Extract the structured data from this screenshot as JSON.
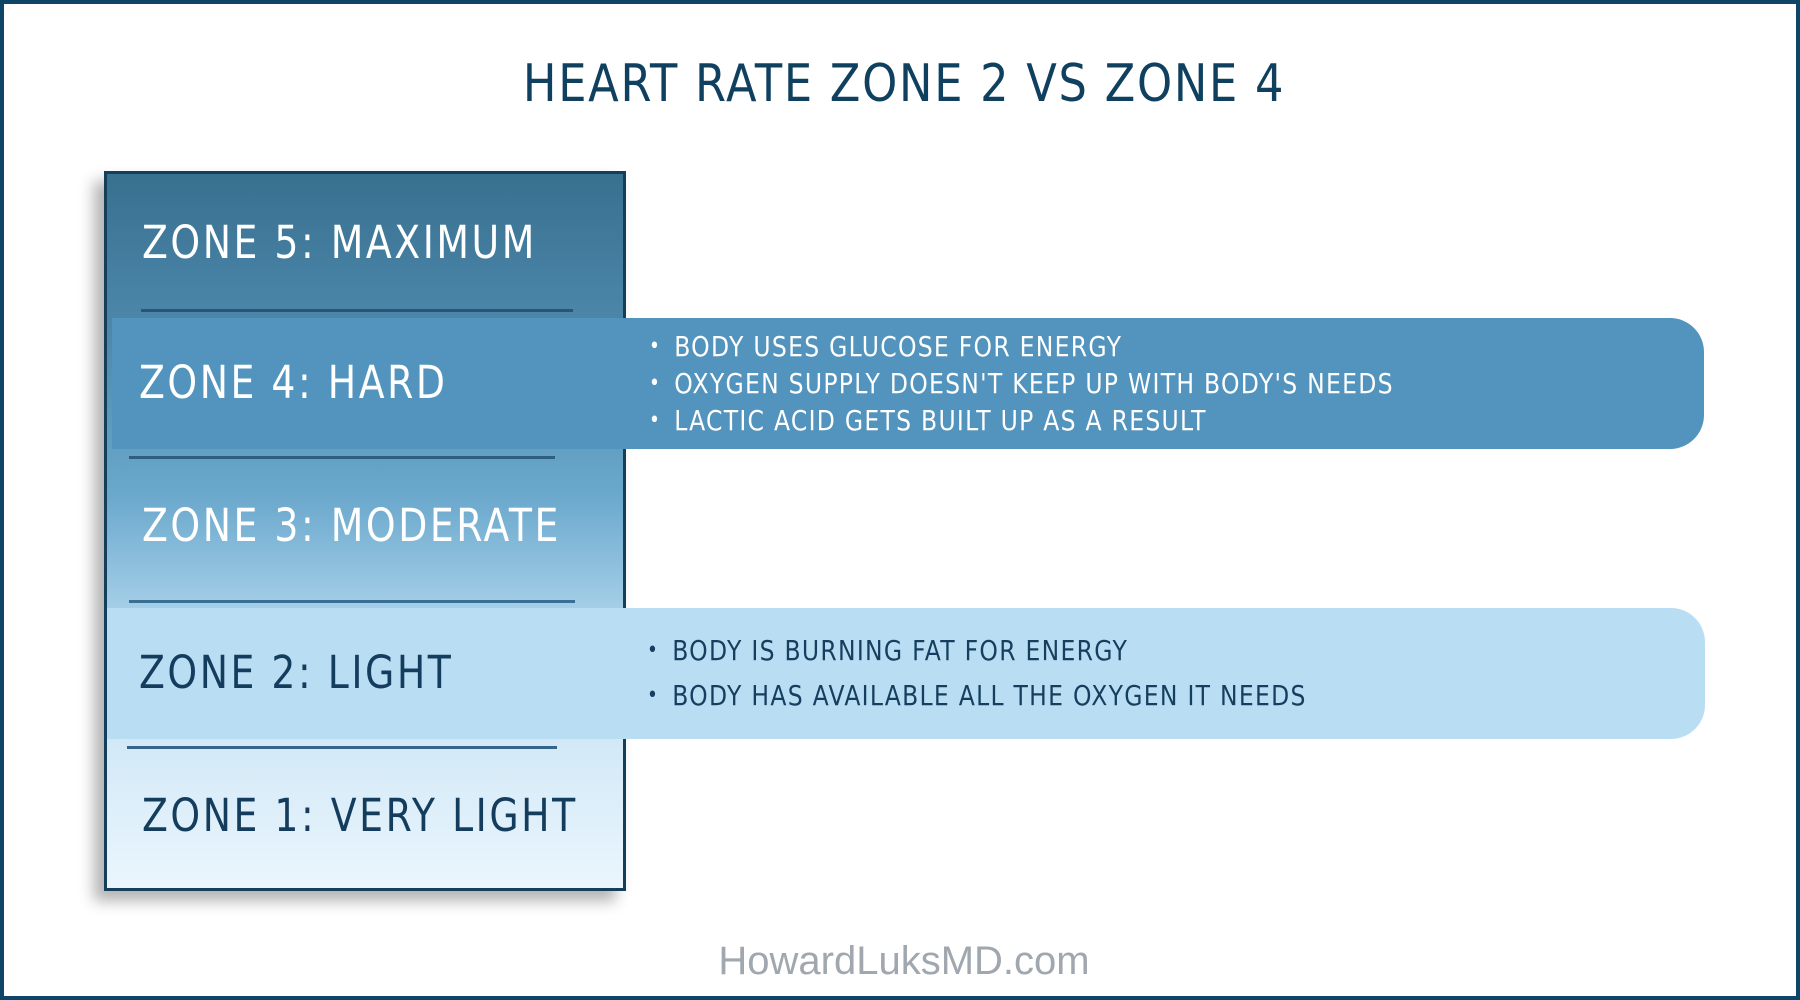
{
  "title": "HEART RATE ZONE 2 VS ZONE 4",
  "zones": [
    {
      "label": "ZONE 5: MAXIMUM"
    },
    {
      "label": "ZONE 4: HARD"
    },
    {
      "label": "ZONE 3: MODERATE"
    },
    {
      "label": "ZONE 2: LIGHT"
    },
    {
      "label": "ZONE 1: VERY LIGHT"
    }
  ],
  "zone4_details": [
    "BODY USES GLUCOSE FOR ENERGY",
    "OXYGEN SUPPLY DOESN'T KEEP UP WITH BODY'S NEEDS",
    "LACTIC ACID GETS BUILT UP AS A RESULT"
  ],
  "zone2_details": [
    "BODY IS BURNING FAT FOR ENERGY",
    "BODY HAS AVAILABLE ALL THE OXYGEN IT NEEDS"
  ],
  "footer": "HowardLuksMD.com",
  "colors": {
    "frame": "#0f4566",
    "zone4_band": "#5294bd",
    "zone2_band": "#b9def4",
    "title_text": "#10405f"
  }
}
